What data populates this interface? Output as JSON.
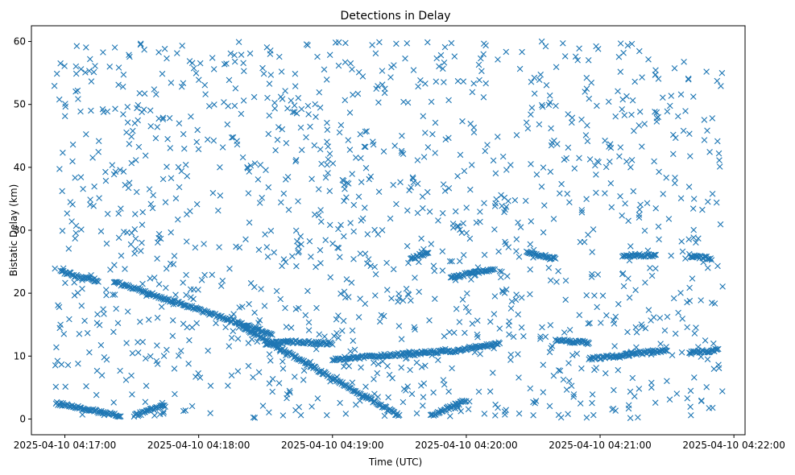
{
  "chart_data": {
    "type": "scatter",
    "title": "Detections in Delay",
    "xlabel": "Time (UTC)",
    "ylabel": "Bistatic Delay (km)",
    "x_start": "2025-04-10 04:16:45",
    "x_end": "2025-04-10 04:22:05",
    "xticks": [
      "2025-04-10 04:17:00",
      "2025-04-10 04:18:00",
      "2025-04-10 04:19:00",
      "2025-04-10 04:20:00",
      "2025-04-10 04:21:00",
      "2025-04-10 04:22:00"
    ],
    "ylim": [
      -2.5,
      62.5
    ],
    "yticks": [
      0,
      10,
      20,
      30,
      40,
      50,
      60
    ],
    "marker": "x",
    "color": "#1f77b4",
    "grid": false,
    "tracks": [
      {
        "x": [
          "2025-04-10 04:16:56",
          "2025-04-10 04:17:25"
        ],
        "y": [
          2.5,
          0.5
        ]
      },
      {
        "x": [
          "2025-04-10 04:16:58",
          "2025-04-10 04:17:15"
        ],
        "y": [
          23.5,
          21.8
        ]
      },
      {
        "x": [
          "2025-04-10 04:17:22",
          "2025-04-10 04:18:33"
        ],
        "y": [
          21.8,
          13.5
        ]
      },
      {
        "x": [
          "2025-04-10 04:17:31",
          "2025-04-10 04:17:45"
        ],
        "y": [
          0.5,
          2.2
        ]
      },
      {
        "x": [
          "2025-04-10 04:18:20",
          "2025-04-10 04:19:30"
        ],
        "y": [
          14.5,
          0.5
        ]
      },
      {
        "x": [
          "2025-04-10 04:18:30",
          "2025-04-10 04:18:40"
        ],
        "y": [
          12.0,
          12.3
        ]
      },
      {
        "x": [
          "2025-04-10 04:18:40",
          "2025-04-10 04:19:00"
        ],
        "y": [
          12.3,
          12.0
        ]
      },
      {
        "x": [
          "2025-04-10 04:19:00",
          "2025-04-10 04:19:40"
        ],
        "y": [
          9.5,
          10.5
        ]
      },
      {
        "x": [
          "2025-04-10 04:19:40",
          "2025-04-10 04:20:00"
        ],
        "y": [
          10.5,
          11.0
        ]
      },
      {
        "x": [
          "2025-04-10 04:19:35",
          "2025-04-10 04:19:43"
        ],
        "y": [
          25.5,
          26.5
        ]
      },
      {
        "x": [
          "2025-04-10 04:19:44",
          "2025-04-10 04:20:00"
        ],
        "y": [
          0.5,
          3.0
        ]
      },
      {
        "x": [
          "2025-04-10 04:19:53",
          "2025-04-10 04:20:12"
        ],
        "y": [
          22.5,
          23.8
        ]
      },
      {
        "x": [
          "2025-04-10 04:20:00",
          "2025-04-10 04:20:15"
        ],
        "y": [
          11.2,
          12.0
        ]
      },
      {
        "x": [
          "2025-04-10 04:20:27",
          "2025-04-10 04:20:40"
        ],
        "y": [
          26.5,
          25.5
        ]
      },
      {
        "x": [
          "2025-04-10 04:20:40",
          "2025-04-10 04:20:55"
        ],
        "y": [
          12.5,
          12.2
        ]
      },
      {
        "x": [
          "2025-04-10 04:20:55",
          "2025-04-10 04:21:30"
        ],
        "y": [
          9.5,
          11.0
        ]
      },
      {
        "x": [
          "2025-04-10 04:21:10",
          "2025-04-10 04:21:25"
        ],
        "y": [
          26.0,
          26.0
        ]
      },
      {
        "x": [
          "2025-04-10 04:21:40",
          "2025-04-10 04:21:53"
        ],
        "y": [
          10.5,
          11.0
        ]
      },
      {
        "x": [
          "2025-04-10 04:21:40",
          "2025-04-10 04:21:50"
        ],
        "y": [
          26.0,
          25.5
        ]
      }
    ]
  }
}
